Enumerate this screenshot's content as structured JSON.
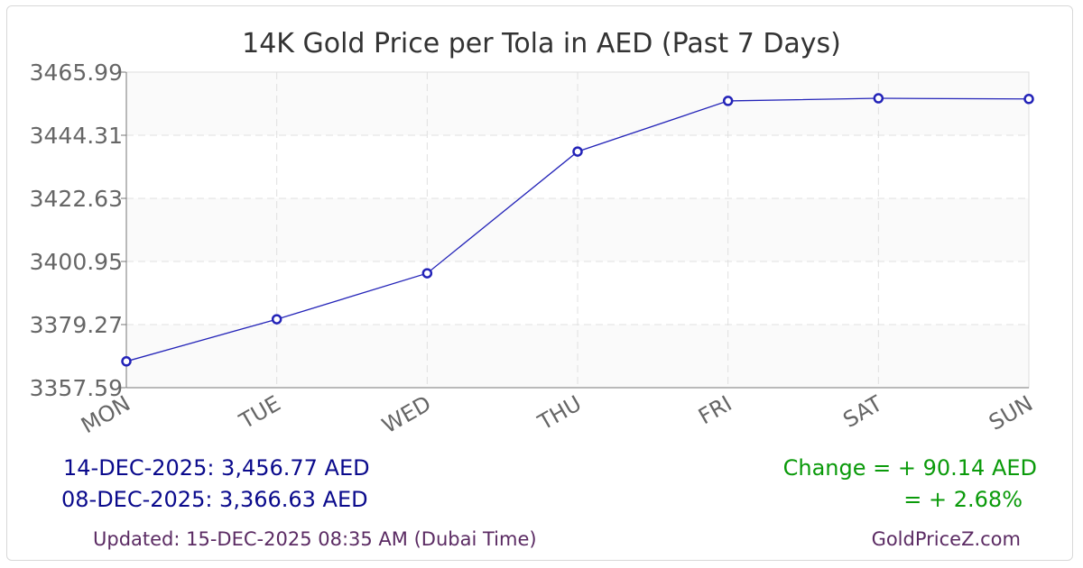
{
  "chart_data": {
    "type": "line",
    "title": "14K Gold Price per Tola in AED (Past 7 Days)",
    "categories": [
      "MON",
      "TUE",
      "WED",
      "THU",
      "FRI",
      "SAT",
      "SUN"
    ],
    "values": [
      3366.63,
      3381.1,
      3396.9,
      3438.7,
      3456.1,
      3457.0,
      3456.77
    ],
    "yticks": [
      "3357.59",
      "3379.27",
      "3400.95",
      "3422.63",
      "3444.31",
      "3465.99"
    ],
    "ylim": [
      3357.59,
      3465.99
    ],
    "grid": true,
    "line_color": "#2323b8"
  },
  "summary": {
    "latest": "14-DEC-2025: 3,456.77 AED",
    "earliest": "08-DEC-2025: 3,366.63 AED",
    "change_abs": "Change = + 90.14 AED",
    "change_pct": "= + 2.68%",
    "updated": "Updated: 15-DEC-2025 08:35 AM (Dubai Time)",
    "site": "GoldPriceZ.com"
  }
}
